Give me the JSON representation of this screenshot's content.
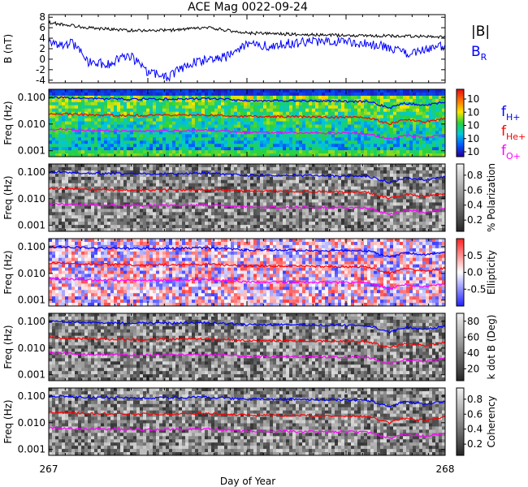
{
  "chart_data": {
    "title": "ACE Mag 0022-09-24",
    "type": "line",
    "xlabel": "Day of Year",
    "xlim": [
      267,
      268
    ],
    "x_ticks": [
      "267",
      "268"
    ],
    "colors": {
      "bmag": "#000000",
      "br": "#0000ff",
      "h": "#0000ff",
      "he": "#ff0000",
      "o": "#ff00ff"
    },
    "panels": [
      {
        "type": "line",
        "ylabel": "B (nT)",
        "ylim": [
          -4.5,
          8.5
        ],
        "y_ticks": [
          "-4",
          "-2",
          "0",
          "2",
          "4",
          "6",
          "8"
        ],
        "y_tick_values": [
          -4,
          -2,
          0,
          2,
          4,
          6,
          8
        ],
        "series": [
          {
            "name": "|B|",
            "key": "bmag",
            "x": [
              267.0,
              267.1,
              267.2,
              267.3,
              267.4,
              267.5,
              267.6,
              267.7,
              267.8,
              267.9,
              268.0
            ],
            "values": [
              7.0,
              6.0,
              5.5,
              5.5,
              6.0,
              5.0,
              4.8,
              4.6,
              4.5,
              4.4,
              4.2
            ]
          },
          {
            "name": "B",
            "sub": "R",
            "key": "br",
            "x": [
              267.0,
              267.02,
              267.06,
              267.1,
              267.15,
              267.2,
              267.25,
              267.3,
              267.35,
              267.4,
              267.45,
              267.5,
              267.55,
              267.6,
              267.7,
              267.8,
              267.85,
              267.9,
              267.95,
              268.0
            ],
            "values": [
              4.0,
              2.5,
              3.0,
              -0.5,
              -1.0,
              1.0,
              -2.5,
              -3.5,
              -1.0,
              0.0,
              0.5,
              3.0,
              2.5,
              3.0,
              3.5,
              3.0,
              2.5,
              1.0,
              2.0,
              2.5
            ]
          }
        ]
      },
      {
        "type": "heatmap",
        "ylabel": "Freq (Hz)",
        "ylim": [
          0.0006,
          0.2
        ],
        "yscale": "log",
        "y_ticks": [
          "0.100",
          "0.010",
          "0.001"
        ],
        "y_tick_values": [
          0.1,
          0.01,
          0.001
        ],
        "colorbar": {
          "ticks": [
            "10",
            "10",
            "10",
            "10",
            "10"
          ],
          "colormap": "rainbow"
        },
        "bg": "#33cc66"
      },
      {
        "type": "heatmap",
        "ylabel": "Freq (Hz)",
        "ylim": [
          0.0006,
          0.2
        ],
        "yscale": "log",
        "y_ticks": [
          "0.100",
          "0.010",
          "0.001"
        ],
        "y_tick_values": [
          0.1,
          0.01,
          0.001
        ],
        "colorbar": {
          "label": "% Polarization",
          "ticks": [
            "0.8",
            "0.6",
            "0.4",
            "0.2"
          ],
          "tick_values": [
            0.8,
            0.6,
            0.4,
            0.2
          ],
          "range": [
            0.05,
            0.95
          ],
          "colormap": "gray"
        },
        "bg": "#6e6e6e"
      },
      {
        "type": "heatmap",
        "ylabel": "Freq (Hz)",
        "ylim": [
          0.0006,
          0.2
        ],
        "yscale": "log",
        "y_ticks": [
          "0.100",
          "0.010",
          "0.001"
        ],
        "y_tick_values": [
          0.1,
          0.01,
          0.001
        ],
        "colorbar": {
          "label": "Ellipticity",
          "ticks": [
            "0.5",
            "0.0",
            "-0.5"
          ],
          "tick_values": [
            0.5,
            0.0,
            -0.5
          ],
          "range": [
            -1,
            1
          ],
          "colormap": "bwr"
        },
        "bg": "#e9e0ee"
      },
      {
        "type": "heatmap",
        "ylabel": "Freq (Hz)",
        "ylim": [
          0.0006,
          0.2
        ],
        "yscale": "log",
        "y_ticks": [
          "0.100",
          "0.010",
          "0.001"
        ],
        "y_tick_values": [
          0.1,
          0.01,
          0.001
        ],
        "colorbar": {
          "label": "k dot B (Deg)",
          "ticks": [
            "80",
            "60",
            "40",
            "20"
          ],
          "tick_values": [
            80,
            60,
            40,
            20
          ],
          "range": [
            5,
            90
          ],
          "colormap": "gray"
        },
        "bg": "#7a7a7a"
      },
      {
        "type": "heatmap",
        "ylabel": "Freq (Hz)",
        "ylim": [
          0.0006,
          0.2
        ],
        "yscale": "log",
        "y_ticks": [
          "0.100",
          "0.010",
          "0.001"
        ],
        "y_tick_values": [
          0.1,
          0.01,
          0.001
        ],
        "colorbar": {
          "label": "Coherency",
          "ticks": [
            "0.8",
            "0.6",
            "0.4",
            "0.2"
          ],
          "tick_values": [
            0.8,
            0.6,
            0.4,
            0.2
          ],
          "range": [
            0.05,
            0.95
          ],
          "colormap": "gray"
        },
        "bg": "#6a6a6a"
      }
    ],
    "gyro_lines": [
      {
        "name": "f",
        "sub": "H+",
        "key": "h",
        "x": [
          267.0,
          267.1,
          267.2,
          267.3,
          267.4,
          267.5,
          267.6,
          267.7,
          267.8,
          267.86,
          267.9,
          267.95,
          268.0
        ],
        "values": [
          0.1,
          0.09,
          0.085,
          0.085,
          0.09,
          0.075,
          0.075,
          0.072,
          0.07,
          0.04,
          0.06,
          0.05,
          0.065
        ]
      },
      {
        "name": "f",
        "sub": "He+",
        "key": "he",
        "x": [
          267.0,
          267.1,
          267.2,
          267.3,
          267.4,
          267.5,
          267.6,
          267.7,
          267.8,
          267.86,
          267.9,
          267.95,
          268.0
        ],
        "values": [
          0.025,
          0.022,
          0.021,
          0.021,
          0.022,
          0.019,
          0.019,
          0.018,
          0.0175,
          0.01,
          0.015,
          0.012,
          0.016
        ]
      },
      {
        "name": "f",
        "sub": "O+",
        "key": "o",
        "x": [
          267.0,
          267.1,
          267.2,
          267.3,
          267.4,
          267.5,
          267.6,
          267.7,
          267.8,
          267.86,
          267.9,
          267.95,
          268.0
        ],
        "values": [
          0.0065,
          0.0058,
          0.0055,
          0.0055,
          0.0058,
          0.0048,
          0.0048,
          0.0046,
          0.0045,
          0.0026,
          0.0038,
          0.0031,
          0.0041
        ]
      }
    ]
  }
}
